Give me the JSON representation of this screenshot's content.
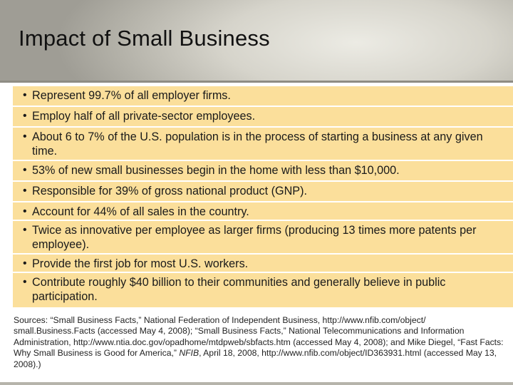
{
  "slide": {
    "title": "Impact of Small Business"
  },
  "bullets": [
    "Represent 99.7% of all employer firms.",
    "Employ half of all private-sector employees.",
    "About 6 to 7% of the U.S. population is in the process of starting a business at any given time.",
    "53% of new small businesses begin in the home with less than $10,000.",
    "Responsible for 39% of gross national product (GNP).",
    "Account for 44% of all sales in the country.",
    "Twice as innovative per employee as larger firms (producing 13 times more patents per employee).",
    "Provide the first job for most U.S. workers.",
    "Contribute roughly $40 billion to their communities and generally believe in public participation."
  ],
  "sources": {
    "part1": "Sources: “Small Business Facts,” National Federation of Independent Business, http://www.nfib.com/object/ small.Business.Facts (accessed May 4, 2008); “Small Business Facts,” National Telecommunications and Information Administration, http://www.ntia.doc.gov/opadhome/mtdpweb/sbfacts.htm (accessed May 4, 2008); and Mike Diegel, “Fast Facts: Why Small Business is Good for America,” ",
    "publication": "NFIB",
    "part2": ", April 18, 2008, http://www.nfib.com/object/ID363931.html (accessed May 13, 2008).)"
  }
}
